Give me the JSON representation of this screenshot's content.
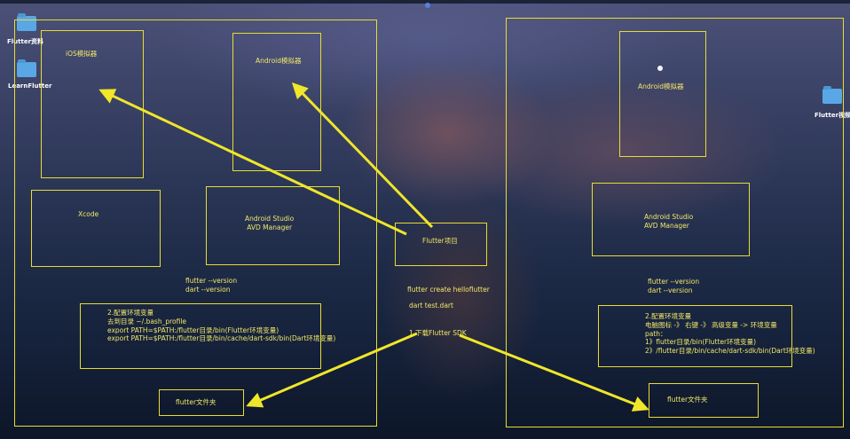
{
  "desktop": {
    "icons": [
      {
        "label": "Flutter资料"
      },
      {
        "label": "LearnFlutter"
      },
      {
        "label": "Flutter视频"
      }
    ]
  },
  "left": {
    "ios_sim": "iOS模拟器",
    "android_sim": "Android模拟器",
    "xcode": "Xcode",
    "studio_line1": "Android  Studio",
    "studio_line2": "AVD Manager",
    "version_line1": "flutter --version",
    "version_line2": "dart --version",
    "env_title": "2.配置环境变量",
    "env_line1": "去到目录    ~/.bash_profile",
    "env_line2": "export PATH=$PATH:/flutter目录/bin(Flutter环境变量)",
    "env_line3": "export PATH=$PATH:/flutter目录/bin/cache/dart-sdk/bin(Dart环境变量)",
    "folder": "flutter文件夹"
  },
  "center": {
    "project": "Flutter项目",
    "cmd1": "flutter create helloflutter",
    "cmd2": "dart test.dart",
    "sdk": "1.下载Flutter SDK"
  },
  "right": {
    "android_sim": "Android模拟器",
    "studio_line1": "Android  Studio",
    "studio_line2": "AVD Manager",
    "version_line1": "flutter --version",
    "version_line2": "dart --version",
    "env_title": "2.配置环境变量",
    "env_line1": "电脑图标 -》 右键 -》 高级变量 -> 环境变量",
    "env_line2": "path：",
    "env_line3": "1》flutter目录/bin(Flutter环境变量)",
    "env_line4": "2》/flutter目录/bin/cache/dart-sdk/bin(Dart环境变量)",
    "folder": "flutter文件夹"
  },
  "colors": {
    "accent": "#e7dc32",
    "arrow": "#f0e62a",
    "text": "#f2e768"
  }
}
